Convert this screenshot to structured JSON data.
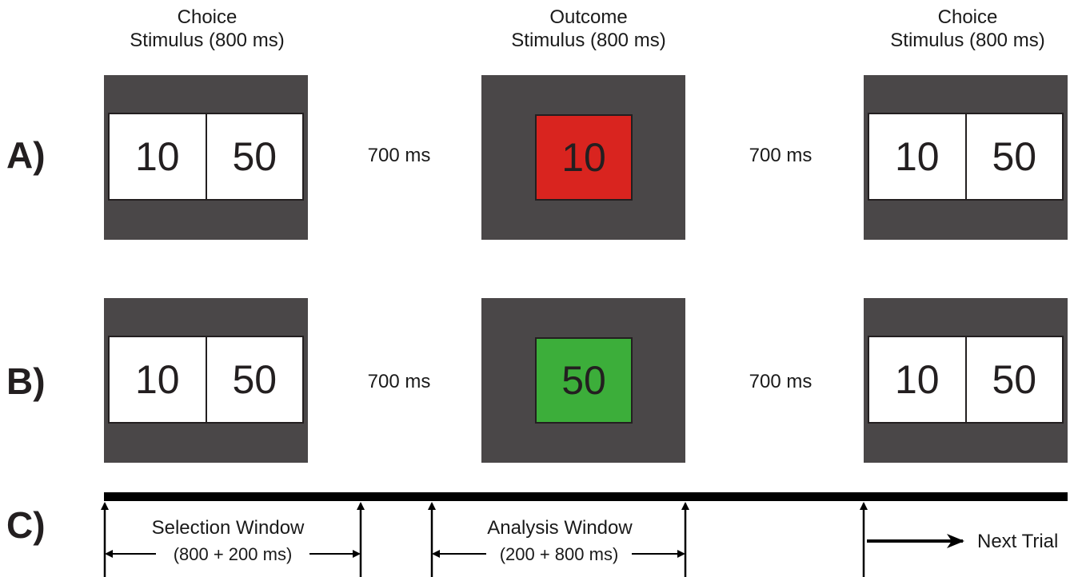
{
  "headers": [
    {
      "line1": "Choice",
      "line2": "Stimulus (800 ms)"
    },
    {
      "line1": "Outcome",
      "line2": "Stimulus (800 ms)"
    },
    {
      "line1": "Choice",
      "line2": "Stimulus (800 ms)"
    }
  ],
  "rows": [
    {
      "label": "A)",
      "choice_left": {
        "left": "10",
        "right": "50"
      },
      "delay1": "700 ms",
      "outcome": {
        "value": "10",
        "color": "#d9241f"
      },
      "delay2": "700 ms",
      "choice_right": {
        "left": "10",
        "right": "50"
      }
    },
    {
      "label": "B)",
      "choice_left": {
        "left": "10",
        "right": "50"
      },
      "delay1": "700 ms",
      "outcome": {
        "value": "50",
        "color": "#3cae3a"
      },
      "delay2": "700 ms",
      "choice_right": {
        "left": "10",
        "right": "50"
      }
    }
  ],
  "timeline": {
    "label": "C)",
    "selection": {
      "title": "Selection Window",
      "duration": "(800 + 200 ms)"
    },
    "analysis": {
      "title": "Analysis Window",
      "duration": "(200 + 800 ms)"
    },
    "next": "Next Trial"
  },
  "colors": {
    "panel": "#4a4748",
    "outcome_a": "#d9241f",
    "outcome_b": "#3cae3a"
  }
}
